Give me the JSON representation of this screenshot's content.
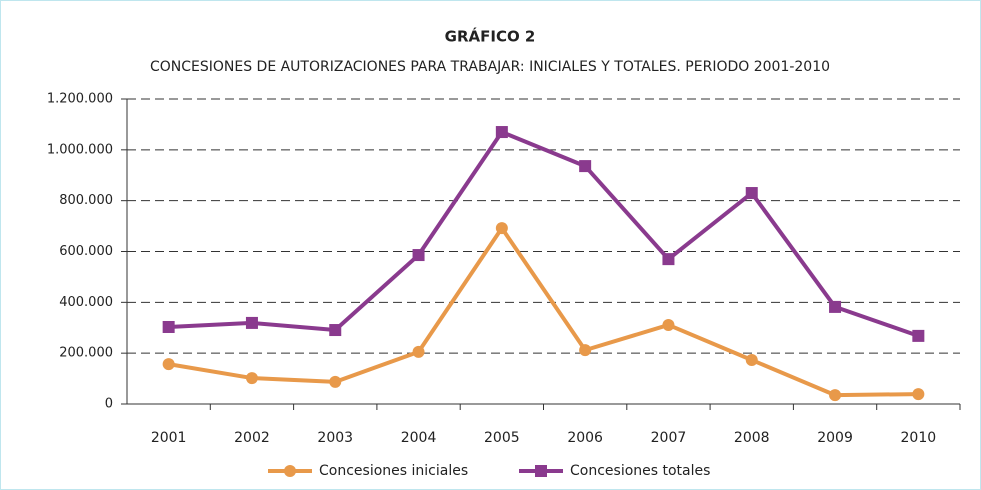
{
  "chart_data": {
    "type": "line",
    "title": "GRÁFICO 2",
    "subtitle": "CONCESIONES DE AUTORIZACIONES PARA TRABAJAR: INICIALES Y TOTALES. PERIODO 2001-2010",
    "categories": [
      "2001",
      "2002",
      "2003",
      "2004",
      "2005",
      "2006",
      "2007",
      "2008",
      "2009",
      "2010"
    ],
    "series": [
      {
        "name": "Concesiones iniciales",
        "color": "#e8994a",
        "marker": "circle",
        "values": [
          157000,
          102000,
          87000,
          205000,
          692000,
          212000,
          311000,
          173000,
          35000,
          39000
        ]
      },
      {
        "name": "Concesiones totales",
        "color": "#8a3a8e",
        "marker": "square",
        "values": [
          303000,
          319000,
          291000,
          586000,
          1070000,
          936000,
          570000,
          830000,
          382000,
          268000
        ]
      }
    ],
    "ylim": [
      0,
      1200000
    ],
    "yticks": [
      0,
      {
        "value": 200000,
        "label": "200.000"
      },
      {
        "value": 400000,
        "label": "400.000"
      },
      {
        "value": 600000,
        "label": "600.000"
      },
      {
        "value": 800000,
        "label": "800.000"
      },
      {
        "value": 1000000,
        "label": "1.000.000"
      },
      {
        "value": 1200000,
        "label": "1.200.000"
      }
    ],
    "grid": true,
    "legend": "bottom"
  }
}
